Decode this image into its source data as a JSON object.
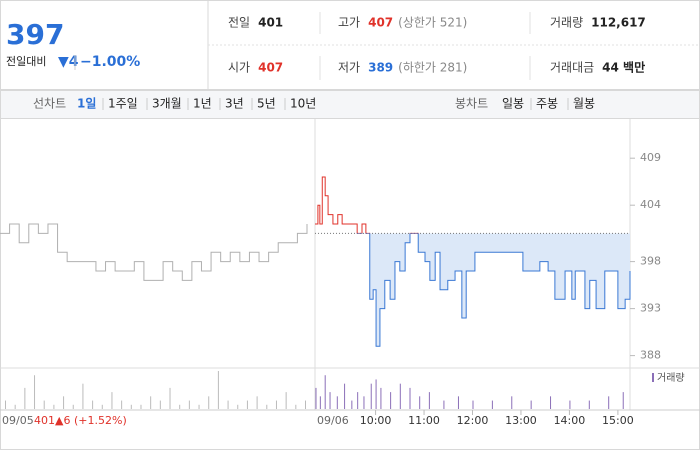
{
  "header": {
    "price": "397",
    "change_label": "전일대비",
    "change": "▼4",
    "change_pct": "−1.00%",
    "stats": [
      {
        "label": "전일",
        "value": "401",
        "color": "#222222"
      },
      {
        "label": "고가",
        "value": "407",
        "extra": "(상한가 521)",
        "color": "#e0322a"
      },
      {
        "label": "거래량",
        "value": "112,617",
        "color": "#222222"
      },
      {
        "label": "시가",
        "value": "407",
        "color": "#e0322a"
      },
      {
        "label": "저가",
        "value": "389",
        "extra": "(하한가 281)",
        "color": "#2a6fd6"
      },
      {
        "label": "거래대금",
        "value": "44 백만",
        "color": "#222222"
      }
    ]
  },
  "tabs": {
    "line_label": "선차트",
    "line_ranges": [
      "1일",
      "1주일",
      "3개월",
      "1년",
      "3년",
      "5년",
      "10년"
    ],
    "active": 0,
    "candle_label": "봉차트",
    "candle_ranges": [
      "일봉",
      "주봉",
      "월봉"
    ]
  },
  "chart_data": {
    "type": "line",
    "ylim": [
      387,
      412
    ],
    "yticks": [
      388,
      393,
      398,
      404,
      409
    ],
    "xlim": [
      8.75,
      15.25
    ],
    "xticks": [
      {
        "value": 10,
        "label": "10:00"
      },
      {
        "value": 11,
        "label": "11:00"
      },
      {
        "value": 12,
        "label": "12:00"
      },
      {
        "value": 13,
        "label": "13:00"
      },
      {
        "value": 14,
        "label": "14:00"
      },
      {
        "value": 15,
        "label": "15:00"
      }
    ],
    "date_labels": [
      "09/05",
      "09/06"
    ],
    "reference": 401,
    "series": [
      {
        "color": "#b0b0b0",
        "values": [
          401,
          402,
          400,
          402,
          401,
          402,
          399,
          398,
          398,
          398,
          397,
          398,
          397,
          397,
          398,
          396,
          396,
          398,
          397,
          396,
          398,
          397,
          399,
          398,
          399,
          398,
          399,
          398,
          399,
          400,
          400,
          401,
          402
        ]
      },
      {
        "color": "#3a78d4",
        "up_color": "#e0322a",
        "fill_color": "#dce8f8",
        "x": [
          8.75,
          8.81,
          8.85,
          8.9,
          8.96,
          9.02,
          9.12,
          9.22,
          9.31,
          9.47,
          9.62,
          9.72,
          9.8,
          9.88,
          9.95,
          10.01,
          10.09,
          10.19,
          10.3,
          10.4,
          10.5,
          10.61,
          10.71,
          10.88,
          11.02,
          11.12,
          11.23,
          11.33,
          11.49,
          11.64,
          11.78,
          11.87,
          12.05,
          12.36,
          12.57,
          12.96,
          13.04,
          13.29,
          13.39,
          13.56,
          13.7,
          13.91,
          14.05,
          14.12,
          14.32,
          14.42,
          14.55,
          14.73,
          15.0,
          15.15,
          15.25
        ],
        "values": [
          402,
          404,
          402,
          407,
          405,
          403,
          402,
          403,
          402,
          402,
          401,
          402,
          401,
          394,
          395,
          389,
          393,
          396,
          394,
          398,
          397,
          400,
          401,
          399,
          398,
          396,
          399,
          395,
          396,
          397,
          392,
          397,
          399,
          399,
          399,
          399,
          397,
          397,
          398,
          397,
          394,
          397,
          394,
          397,
          393,
          396,
          393,
          397,
          393,
          394,
          397
        ]
      }
    ],
    "volume": {
      "label": "거래량",
      "color": "#8b6fb8",
      "prev_values": [
        2,
        1,
        5,
        8,
        2,
        1,
        3,
        1,
        6,
        2,
        1,
        4,
        2,
        1,
        1,
        3,
        2,
        5,
        1,
        2,
        1,
        3,
        9,
        2,
        1,
        2,
        3,
        1,
        2,
        4,
        1,
        2
      ],
      "x": [
        8.76,
        8.85,
        8.95,
        9.05,
        9.2,
        9.35,
        9.5,
        9.62,
        9.75,
        9.9,
        10.0,
        10.1,
        10.3,
        10.5,
        10.7,
        10.9,
        11.1,
        11.4,
        11.7,
        12.0,
        12.4,
        12.8,
        13.2,
        13.6,
        14.0,
        14.4,
        14.8,
        15.1
      ],
      "values": [
        5,
        3,
        8,
        4,
        3,
        6,
        2,
        4,
        3,
        6,
        7,
        5,
        4,
        6,
        5,
        3,
        4,
        2,
        3,
        2,
        2,
        3,
        2,
        3,
        2,
        2,
        3,
        4
      ]
    }
  },
  "footer": {
    "close": "401",
    "change": "▲6",
    "pct": "(+1.52%)"
  }
}
